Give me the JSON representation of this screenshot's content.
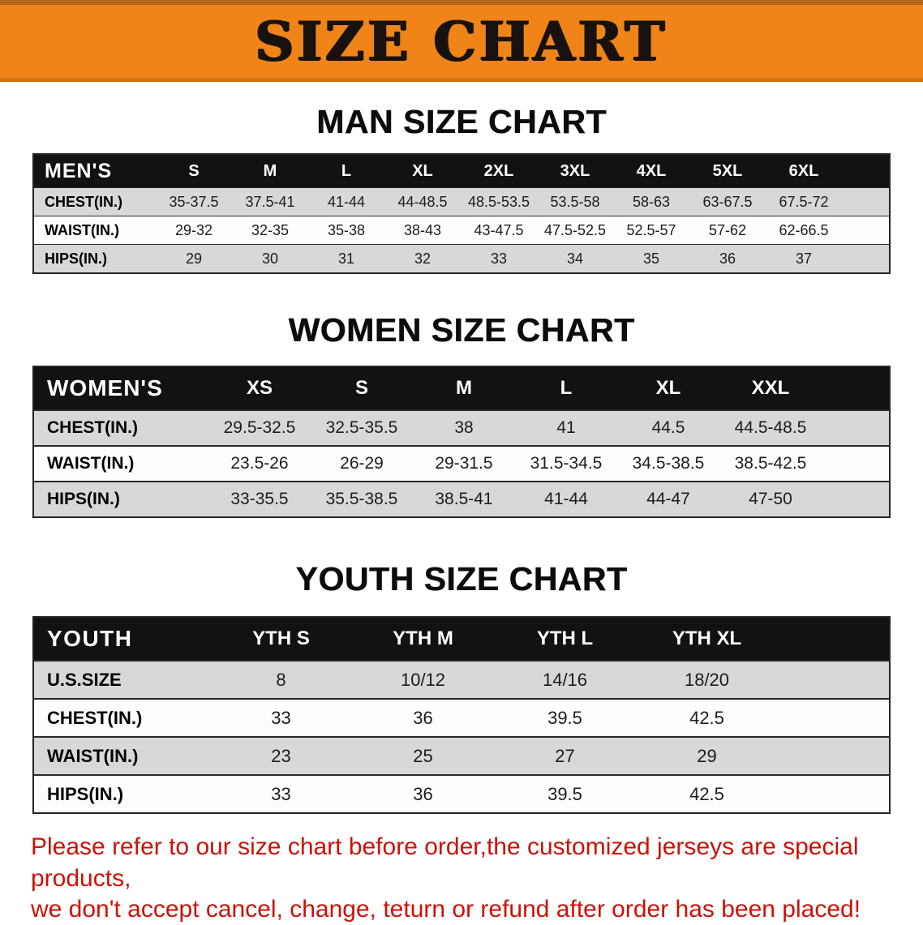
{
  "banner": {
    "title": "SIZE CHART"
  },
  "sections": [
    {
      "heading": "MAN SIZE CHART",
      "table": {
        "header": [
          "MEN'S",
          "S",
          "M",
          "L",
          "XL",
          "2XL",
          "3XL",
          "4XL",
          "5XL",
          "6XL"
        ],
        "rows": [
          [
            "CHEST(IN.)",
            "35-37.5",
            "37.5-41",
            "41-44",
            "44-48.5",
            "48.5-53.5",
            "53.5-58",
            "58-63",
            "63-67.5",
            "67.5-72"
          ],
          [
            "WAIST(IN.)",
            "29-32",
            "32-35",
            "35-38",
            "38-43",
            "43-47.5",
            "47.5-52.5",
            "52.5-57",
            "57-62",
            "62-66.5"
          ],
          [
            "HIPS(IN.)",
            "29",
            "30",
            "31",
            "32",
            "33",
            "34",
            "35",
            "36",
            "37"
          ]
        ]
      }
    },
    {
      "heading": "WOMEN SIZE CHART",
      "table": {
        "header": [
          "WOMEN'S",
          "XS",
          "S",
          "M",
          "L",
          "XL",
          "XXL"
        ],
        "rows": [
          [
            "CHEST(IN.)",
            "29.5-32.5",
            "32.5-35.5",
            "38",
            "41",
            "44.5",
            "44.5-48.5"
          ],
          [
            "WAIST(IN.)",
            "23.5-26",
            "26-29",
            "29-31.5",
            "31.5-34.5",
            "34.5-38.5",
            "38.5-42.5"
          ],
          [
            "HIPS(IN.)",
            "33-35.5",
            "35.5-38.5",
            "38.5-41",
            "41-44",
            "44-47",
            "47-50"
          ]
        ]
      }
    },
    {
      "heading": "YOUTH SIZE CHART",
      "table": {
        "header": [
          "YOUTH",
          "YTH S",
          "YTH M",
          "YTH L",
          "YTH XL"
        ],
        "rows": [
          [
            "U.S.SIZE",
            "8",
            "10/12",
            "14/16",
            "18/20"
          ],
          [
            "CHEST(IN.)",
            "33",
            "36",
            "39.5",
            "42.5"
          ],
          [
            "WAIST(IN.)",
            "23",
            "25",
            "27",
            "29"
          ],
          [
            "HIPS(IN.)",
            "33",
            "36",
            "39.5",
            "42.5"
          ]
        ]
      }
    }
  ],
  "disclaimer": {
    "line1": "Please refer to our size chart before order,the customized jerseys are special products,",
    "line2": "we don't accept cancel, change, teturn or refund after order has been placed!"
  },
  "colors": {
    "banner-bg": "#f08418",
    "banner-text": "#17120e",
    "table-header-bg": "#121212",
    "shaded-row": "#d8d8d8",
    "disclaimer-red": "#cc1208"
  }
}
